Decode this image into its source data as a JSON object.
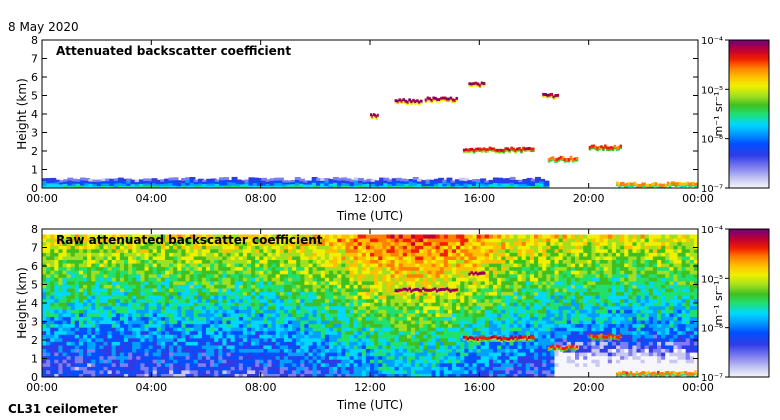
{
  "date": "8 May 2020",
  "instrument": "CL31 ceilometer",
  "colors": {
    "colormap": [
      "#f6f6fb",
      "#c8c8f2",
      "#7e7ef0",
      "#2f3ce6",
      "#0050ff",
      "#00a0ff",
      "#00d8ff",
      "#20e070",
      "#40c020",
      "#a0e020",
      "#f0f000",
      "#ffc000",
      "#ff8000",
      "#f02000",
      "#c00030",
      "#900060",
      "#700070"
    ]
  },
  "chart_data": [
    {
      "type": "heatmap",
      "title": "Attenuated backscatter coefficient",
      "xlabel": "Time (UTC)",
      "ylabel": "Height (km)",
      "xlim": [
        0,
        24
      ],
      "ylim": [
        0,
        8
      ],
      "xticks": [
        "00:00",
        "04:00",
        "08:00",
        "12:00",
        "16:00",
        "20:00",
        "00:00"
      ],
      "yticks": [
        "0",
        "1",
        "2",
        "3",
        "4",
        "5",
        "6",
        "7",
        "8"
      ],
      "colorbar": {
        "label": "m⁻¹ sr⁻¹",
        "ticks": [
          "10⁻⁷",
          "10⁻⁶",
          "10⁻⁵",
          "10⁻⁴"
        ],
        "range_log10": [
          -7,
          -4
        ]
      },
      "features": [
        {
          "name": "boundary layer",
          "t_start": 0,
          "t_end": 18.5,
          "height_top_km": 0.5,
          "log10_value": -6.3
        },
        {
          "name": "cloud layer",
          "t_start": 12.0,
          "t_end": 12.3,
          "height_km": 3.9,
          "log10_value": -4.3
        },
        {
          "name": "cloud layer",
          "t_start": 12.9,
          "t_end": 13.9,
          "height_km": 4.7,
          "log10_value": -4.2
        },
        {
          "name": "cloud layer",
          "t_start": 14.0,
          "t_end": 15.2,
          "height_km": 4.8,
          "log10_value": -4.2
        },
        {
          "name": "cloud layer",
          "t_start": 15.6,
          "t_end": 16.2,
          "height_km": 5.6,
          "log10_value": -4.2
        },
        {
          "name": "cloud layer",
          "t_start": 18.3,
          "t_end": 18.9,
          "height_km": 5.0,
          "log10_value": -4.2
        },
        {
          "name": "cloud layer",
          "t_start": 15.4,
          "t_end": 18.0,
          "height_km": 2.1,
          "log10_value": -4.5
        },
        {
          "name": "cloud layer",
          "t_start": 18.5,
          "t_end": 19.6,
          "height_km": 1.6,
          "log10_value": -4.6
        },
        {
          "name": "cloud layer",
          "t_start": 20.0,
          "t_end": 21.2,
          "height_km": 2.2,
          "log10_value": -4.6
        },
        {
          "name": "surface layer",
          "t_start": 21.0,
          "t_end": 24.0,
          "height_km": 0.2,
          "log10_value": -4.8
        }
      ]
    },
    {
      "type": "heatmap",
      "title": "Raw attenuated backscatter coefficient",
      "xlabel": "Time (UTC)",
      "ylabel": "Height (km)",
      "xlim": [
        0,
        24
      ],
      "ylim": [
        0,
        8
      ],
      "xticks": [
        "00:00",
        "04:00",
        "08:00",
        "12:00",
        "16:00",
        "20:00",
        "00:00"
      ],
      "yticks": [
        "0",
        "1",
        "2",
        "3",
        "4",
        "5",
        "6",
        "7",
        "8"
      ],
      "colorbar": {
        "label": "m⁻¹ sr⁻¹",
        "ticks": [
          "10⁻⁷",
          "10⁻⁶",
          "10⁻⁵",
          "10⁻⁴"
        ],
        "range_log10": [
          -7,
          -4
        ]
      },
      "features": [
        {
          "name": "noisy background",
          "t_start": 0,
          "t_end": 24,
          "height_range_km": [
            0,
            7.7
          ],
          "log10_value_low": -6.8,
          "log10_value_high": -5.0
        },
        {
          "name": "cloud layer",
          "t_start": 12.9,
          "t_end": 15.2,
          "height_km": 4.7,
          "log10_value": -4.2
        },
        {
          "name": "cloud layer",
          "t_start": 15.6,
          "t_end": 16.2,
          "height_km": 5.6,
          "log10_value": -4.2
        },
        {
          "name": "cloud layer",
          "t_start": 15.4,
          "t_end": 18.0,
          "height_km": 2.1,
          "log10_value": -4.5
        },
        {
          "name": "cloud layer",
          "t_start": 18.5,
          "t_end": 19.6,
          "height_km": 1.6,
          "log10_value": -4.6
        },
        {
          "name": "cloud layer",
          "t_start": 20.0,
          "t_end": 21.2,
          "height_km": 2.2,
          "log10_value": -4.6
        },
        {
          "name": "surface layer",
          "t_start": 21.0,
          "t_end": 24.0,
          "height_km": 0.2,
          "log10_value": -4.8
        }
      ]
    }
  ]
}
